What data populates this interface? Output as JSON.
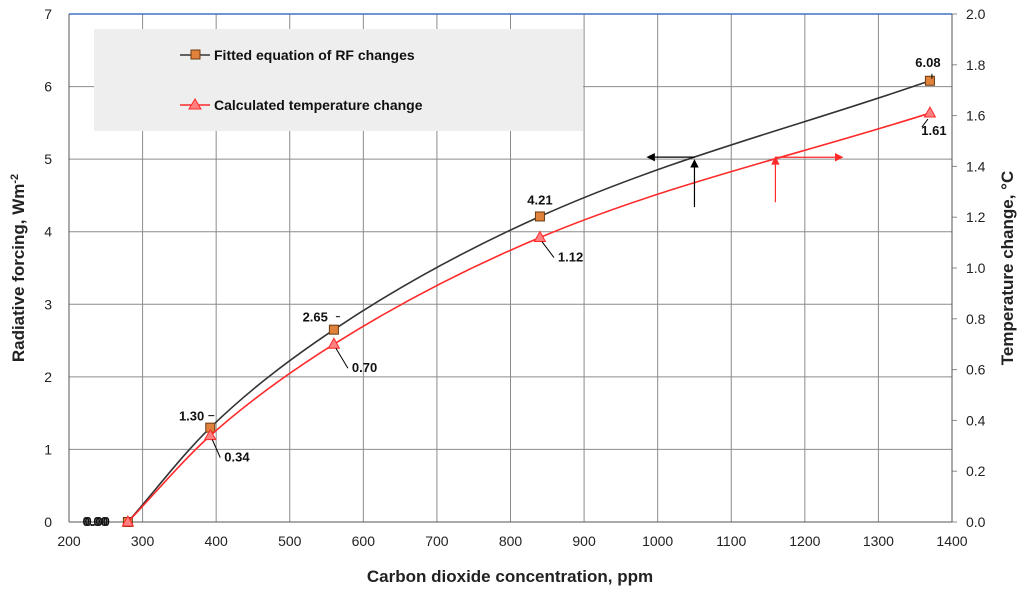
{
  "chart_data": {
    "type": "line",
    "xlabel": "Carbon dioxide concentration, ppm",
    "ylabel": "Radiative forcing, Wm",
    "ylabel_sup": "-2",
    "y2label": "Temperature change, °C",
    "xlim": [
      200,
      1400
    ],
    "ylim": [
      0,
      7
    ],
    "y2lim": [
      0.0,
      2.0
    ],
    "xticks": [
      "200",
      "300",
      "400",
      "500",
      "600",
      "700",
      "800",
      "900",
      "1000",
      "1100",
      "1200",
      "1300",
      "1400"
    ],
    "yticks": [
      "0",
      "1",
      "2",
      "3",
      "4",
      "5",
      "6",
      "7"
    ],
    "y2ticks": [
      "0.0",
      "0.2",
      "0.4",
      "0.6",
      "0.8",
      "1.0",
      "1.2",
      "1.4",
      "1.6",
      "1.8",
      "2.0"
    ],
    "grid": true,
    "legend_position": "top-left",
    "series": [
      {
        "name": "Fitted equation of RF changes",
        "axis": "left",
        "color": "#333333",
        "marker": "square",
        "marker_color": "#e0823c",
        "x": [
          280,
          392,
          560,
          840,
          1370
        ],
        "y": [
          0.0,
          1.3,
          2.65,
          4.21,
          6.08
        ],
        "labels": [
          "0.00",
          "1.30",
          "2.65",
          "4.21",
          "6.08"
        ]
      },
      {
        "name": "Calculated temperature change",
        "axis": "right",
        "color": "#ff2a2a",
        "marker": "triangle",
        "marker_color": "#ff8080",
        "x": [
          280,
          392,
          560,
          840,
          1370
        ],
        "y": [
          0.0,
          0.34,
          0.7,
          1.12,
          1.61
        ],
        "labels": [
          "0.00",
          "0.34",
          "0.70",
          "1.12",
          "1.61"
        ]
      }
    ],
    "annotations": [
      {
        "kind": "arrow-left-axis",
        "series": 0,
        "x": 1050,
        "y_value": 5.0,
        "color": "#000000"
      },
      {
        "kind": "arrow-right-axis",
        "series": 1,
        "x": 1160,
        "y_value": 1.44,
        "color": "#ff2a2a"
      }
    ]
  }
}
